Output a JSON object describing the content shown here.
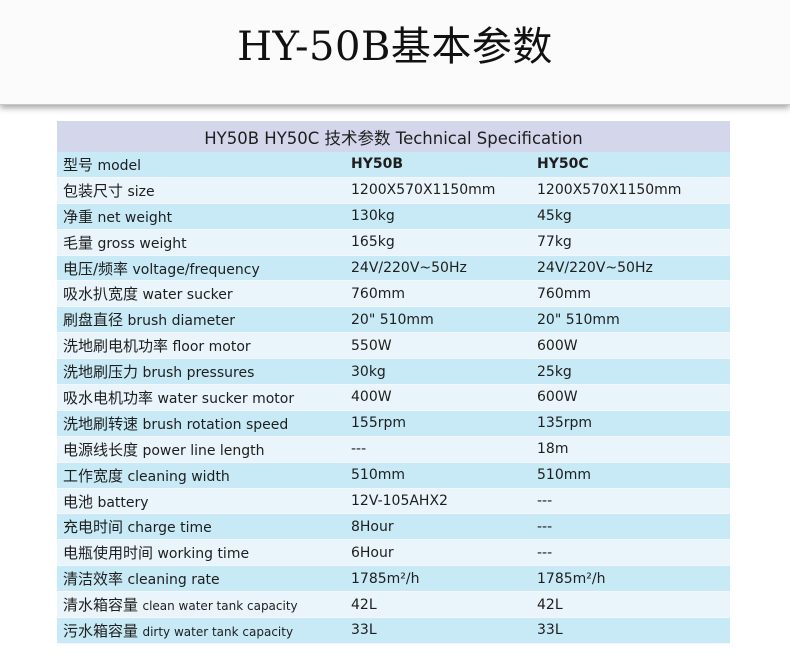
{
  "page": {
    "title": "HY-50B基本参数"
  },
  "table": {
    "header": "HY50B  HY50C  技术参数 Technical Specification",
    "rows": [
      {
        "cn": "型号",
        "en": "model",
        "v1": "HY50B",
        "v2": "HY50C"
      },
      {
        "cn": "包装尺寸",
        "en": "size",
        "v1": "1200X570X1150mm",
        "v2": "1200X570X1150mm"
      },
      {
        "cn": "净重",
        "en": "net weight",
        "v1": "130kg",
        "v2": "45kg"
      },
      {
        "cn": "毛量",
        "en": "gross weight",
        "v1": "165kg",
        "v2": "77kg"
      },
      {
        "cn": "电压/频率",
        "en": "voltage/frequency",
        "v1": "24V/220V~50Hz",
        "v2": "24V/220V~50Hz"
      },
      {
        "cn": "吸水扒宽度",
        "en": "water sucker",
        "v1": "760mm",
        "v2": "760mm"
      },
      {
        "cn": "刷盘直径",
        "en": "brush diameter",
        "v1": "20\"  510mm",
        "v2": "20\"  510mm"
      },
      {
        "cn": "洗地刷电机功率",
        "en": "floor motor",
        "v1": "550W",
        "v2": "600W"
      },
      {
        "cn": "洗地刷压力",
        "en": "brush pressures",
        "v1": "30kg",
        "v2": "25kg"
      },
      {
        "cn": "吸水电机功率",
        "en": "water sucker motor",
        "v1": "400W",
        "v2": "600W"
      },
      {
        "cn": "洗地刷转速",
        "en": "brush rotation speed",
        "v1": "155rpm",
        "v2": "135rpm"
      },
      {
        "cn": "电源线长度",
        "en": "power line length",
        "v1": "---",
        "v2": "18m"
      },
      {
        "cn": "工作宽度",
        "en": "cleaning width",
        "v1": "510mm",
        "v2": "510mm"
      },
      {
        "cn": "电池",
        "en": "battery",
        "v1": "12V-105AHX2",
        "v2": "---"
      },
      {
        "cn": "充电时间",
        "en": "charge time",
        "v1": "8Hour",
        "v2": "---"
      },
      {
        "cn": "电瓶使用时间",
        "en": "working time",
        "v1": "6Hour",
        "v2": "---"
      },
      {
        "cn": "清洁效率",
        "en": "cleaning rate",
        "v1": "1785m²/h",
        "v2": "1785m²/h"
      },
      {
        "cn": "清水箱容量",
        "en": "clean water tank capacity",
        "v1": "42L",
        "v2": "42L"
      },
      {
        "cn": "污水箱容量",
        "en": "dirty water tank capacity",
        "v1": "33L",
        "v2": "33L"
      }
    ]
  }
}
